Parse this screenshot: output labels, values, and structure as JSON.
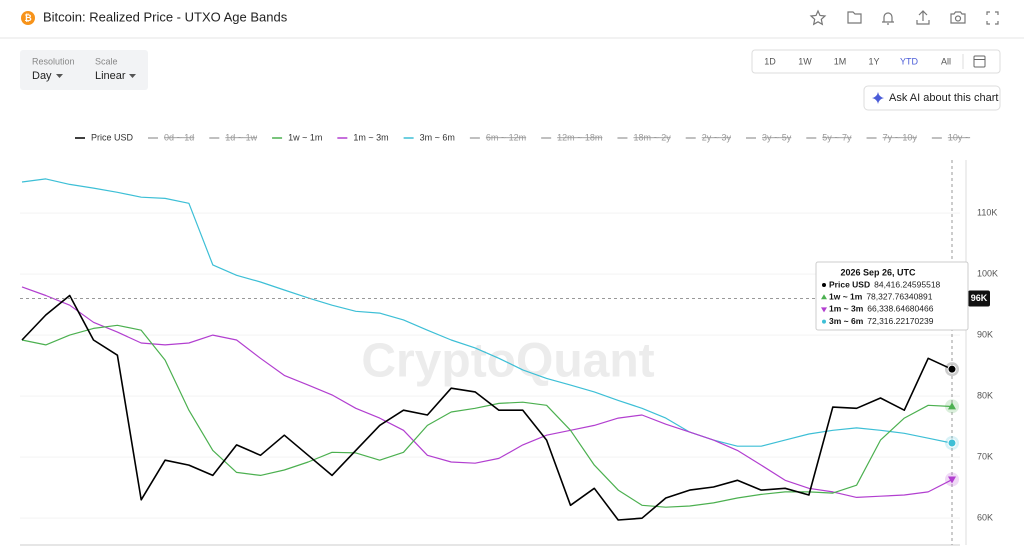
{
  "header": {
    "title": "Bitcoin: Realized Price - UTXO Age Bands"
  },
  "controls": {
    "resolution_label": "Resolution",
    "resolution": "Day",
    "scale_label": "Scale",
    "scale": "Linear",
    "ranges": [
      "1D",
      "1W",
      "1M",
      "1Y",
      "YTD",
      "All"
    ],
    "active_range": "YTD",
    "ask_ai": "Ask AI about this chart"
  },
  "watermark": "CryptoQuant",
  "chart_data": {
    "type": "line",
    "categories": [
      null,
      null,
      null,
      null,
      null,
      null,
      null,
      null,
      null,
      null,
      null,
      null,
      null,
      null,
      null,
      null,
      null,
      null,
      null,
      null,
      null,
      null,
      null,
      null,
      null,
      null,
      null,
      null,
      null,
      null,
      null,
      null,
      null,
      null,
      null,
      null,
      null,
      null,
      null,
      null
    ],
    "series": [
      {
        "name": "Price USD",
        "color": "#000000",
        "visible": true,
        "values": [
          89200,
          93300,
          96500,
          89200,
          86700,
          63000,
          69500,
          68700,
          67000,
          72000,
          70300,
          73600,
          70300,
          67000,
          71100,
          75200,
          77700,
          76900,
          81300,
          80700,
          77700,
          77700,
          72800,
          62100,
          64900,
          59700,
          60000,
          63300,
          64600,
          65100,
          66200,
          64600,
          64900,
          63800,
          78200,
          78000,
          79700,
          77700,
          86200,
          84400
        ]
      },
      {
        "name": "0d ~ 1d",
        "color": "#b5b5b5",
        "visible": false
      },
      {
        "name": "1d ~ 1w",
        "color": "#b5b5b5",
        "visible": false
      },
      {
        "name": "1w ~ 1m",
        "color": "#4cb050",
        "visible": true,
        "values": [
          89200,
          88400,
          90000,
          91100,
          91600,
          90800,
          85900,
          77700,
          71100,
          67500,
          67000,
          67900,
          69200,
          70800,
          70700,
          69500,
          70800,
          75200,
          77400,
          78000,
          78800,
          79000,
          78500,
          74400,
          68700,
          64600,
          62100,
          61800,
          62000,
          62500,
          63300,
          63900,
          64300,
          64300,
          64100,
          65400,
          72800,
          76400,
          78500,
          78300
        ]
      },
      {
        "name": "1m ~ 3m",
        "color": "#b23fd0",
        "visible": true,
        "values": [
          97900,
          96500,
          94900,
          92100,
          90500,
          88700,
          88400,
          88700,
          90000,
          89200,
          86200,
          83400,
          81800,
          80200,
          78000,
          76400,
          74400,
          70300,
          69200,
          69000,
          69800,
          72000,
          73600,
          74400,
          75200,
          76400,
          76900,
          75400,
          74100,
          72800,
          71100,
          68700,
          66200,
          64900,
          64300,
          63400,
          63600,
          63800,
          64300,
          66300
        ]
      },
      {
        "name": "3m ~ 6m",
        "color": "#3dbfd6",
        "visible": true,
        "values": [
          115100,
          115600,
          114700,
          114100,
          113400,
          112600,
          112400,
          111600,
          101500,
          99800,
          98700,
          97400,
          96100,
          94900,
          93900,
          93600,
          92500,
          90800,
          89200,
          87900,
          86200,
          84300,
          82900,
          81800,
          80700,
          79300,
          78000,
          76400,
          74100,
          72800,
          71800,
          71800,
          72800,
          73800,
          74400,
          74800,
          74400,
          73900,
          73100,
          72300
        ]
      },
      {
        "name": "6m ~ 12m",
        "color": "#b5b5b5",
        "visible": false
      },
      {
        "name": "12m ~ 18m",
        "color": "#b5b5b5",
        "visible": false
      },
      {
        "name": "18m ~ 2y",
        "color": "#b5b5b5",
        "visible": false
      },
      {
        "name": "2y ~ 3y",
        "color": "#b5b5b5",
        "visible": false
      },
      {
        "name": "3y ~ 5y",
        "color": "#b5b5b5",
        "visible": false
      },
      {
        "name": "5y ~ 7y",
        "color": "#b5b5b5",
        "visible": false
      },
      {
        "name": "7y ~ 10y",
        "color": "#b5b5b5",
        "visible": false
      },
      {
        "name": "10y ~",
        "color": "#b5b5b5",
        "visible": false
      }
    ],
    "ylim": [
      55600,
      118700
    ],
    "yticks": [
      {
        "value": 60000,
        "label": "60K"
      },
      {
        "value": 70000,
        "label": "70K"
      },
      {
        "value": 80000,
        "label": "80K"
      },
      {
        "value": 90000,
        "label": "90K"
      },
      {
        "value": 100000,
        "label": "100K"
      },
      {
        "value": 110000,
        "label": "110K"
      }
    ],
    "grid": true,
    "crosshair": {
      "value": 96000,
      "label": "96K"
    },
    "tooltip": {
      "date": "2026 Sep 26, UTC",
      "values": [
        84416.24595518,
        78327.76340891,
        66338.64680466,
        72316.22170239
      ],
      "value_labels": [
        "84,416.24595518",
        "78,327.76340891",
        "66,338.64680466",
        "72,316.22170239"
      ]
    }
  }
}
